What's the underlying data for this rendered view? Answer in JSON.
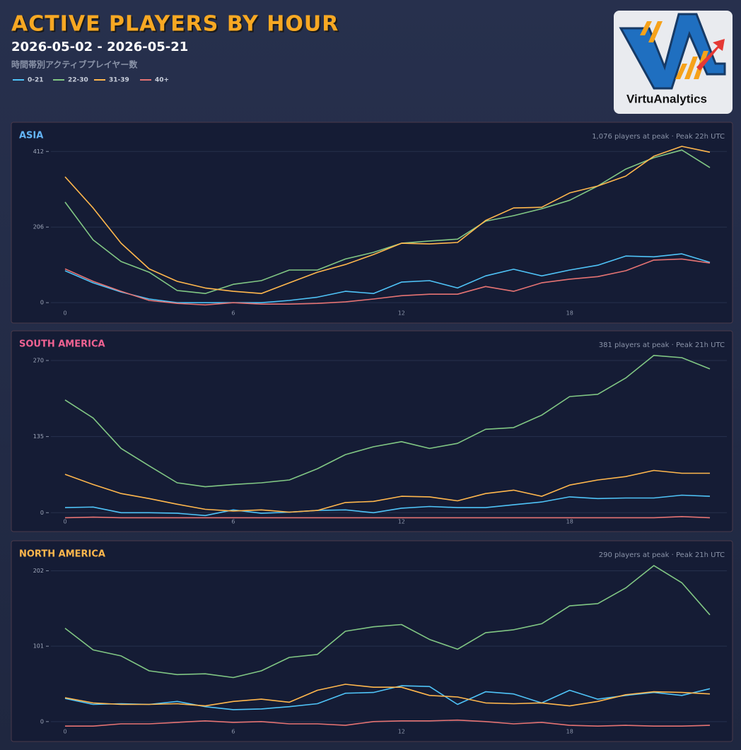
{
  "header": {
    "title": "ACTIVE PLAYERS BY HOUR",
    "date_range": "2026-05-02 - 2026-05-21",
    "subtitle": "時間帯別アクティブプレイヤー数"
  },
  "logo": {
    "text": "VirtuAnalytics"
  },
  "chart_data": [
    {
      "type": "line",
      "title": "ASIA",
      "title_color": "#64b5f6",
      "annotation": "1,076 players at peak  ·  Peak 22h UTC",
      "grid": true,
      "x": [
        0,
        1,
        2,
        3,
        4,
        5,
        6,
        7,
        8,
        9,
        10,
        11,
        12,
        13,
        14,
        15,
        16,
        17,
        18,
        19,
        20,
        21,
        22,
        23
      ],
      "xlim": [
        0,
        23
      ],
      "xticks": [
        0,
        6,
        12,
        18
      ],
      "ylim": [
        -44,
        426
      ],
      "yticks": [
        0,
        206,
        412
      ],
      "series": [
        {
          "name": "0-21",
          "color": "#4fc3f7",
          "values": [
            87,
            54,
            29,
            10,
            0,
            0,
            0,
            0,
            6,
            15,
            31,
            25,
            56,
            60,
            40,
            73,
            91,
            73,
            89,
            102,
            127,
            125,
            133,
            110
          ]
        },
        {
          "name": "22-30",
          "color": "#81c784",
          "values": [
            274,
            171,
            112,
            83,
            33,
            25,
            50,
            60,
            89,
            89,
            119,
            137,
            162,
            168,
            173,
            222,
            237,
            256,
            279,
            318,
            364,
            395,
            416,
            368
          ]
        },
        {
          "name": "31-39",
          "color": "#ffb74d",
          "values": [
            343,
            258,
            162,
            92,
            58,
            40,
            31,
            25,
            54,
            83,
            104,
            131,
            162,
            160,
            164,
            224,
            258,
            260,
            299,
            318,
            345,
            399,
            426,
            410
          ]
        },
        {
          "name": "40+",
          "color": "#e57373",
          "values": [
            92,
            58,
            31,
            6,
            -2,
            -6,
            0,
            -4,
            -4,
            -2,
            2,
            10,
            19,
            23,
            23,
            44,
            31,
            54,
            64,
            71,
            87,
            116,
            119,
            108
          ]
        }
      ]
    },
    {
      "type": "line",
      "title": "SOUTH AMERICA",
      "title_color": "#f06292",
      "annotation": "381 players at peak  ·  Peak 21h UTC",
      "grid": true,
      "x": [
        0,
        1,
        2,
        3,
        4,
        5,
        6,
        7,
        8,
        9,
        10,
        11,
        12,
        13,
        14,
        15,
        16,
        17,
        18,
        19,
        20,
        21,
        22,
        23
      ],
      "xlim": [
        0,
        23
      ],
      "xticks": [
        0,
        6,
        12,
        18
      ],
      "ylim": [
        -26,
        280
      ],
      "yticks": [
        0,
        135,
        270
      ],
      "series": [
        {
          "name": "0-21",
          "color": "#4fc3f7",
          "values": [
            9,
            10,
            0,
            0,
            -1,
            -5,
            5,
            -1,
            1,
            4,
            5,
            0,
            8,
            11,
            9,
            9,
            14,
            19,
            28,
            25,
            26,
            26,
            31,
            29
          ]
        },
        {
          "name": "22-30",
          "color": "#81c784",
          "values": [
            200,
            168,
            114,
            83,
            53,
            46,
            50,
            53,
            58,
            78,
            103,
            117,
            126,
            114,
            123,
            148,
            151,
            173,
            206,
            210,
            239,
            279,
            275,
            255
          ]
        },
        {
          "name": "31-39",
          "color": "#ffb74d",
          "values": [
            68,
            50,
            34,
            25,
            15,
            6,
            3,
            5,
            1,
            4,
            18,
            20,
            29,
            28,
            21,
            34,
            40,
            29,
            49,
            58,
            64,
            75,
            70,
            70
          ]
        },
        {
          "name": "40+",
          "color": "#e57373",
          "values": [
            -9,
            -8,
            -9,
            -9,
            -9,
            -9,
            -9,
            -9,
            -9,
            -9,
            -9,
            -9,
            -9,
            -9,
            -9,
            -9,
            -9,
            -9,
            -9,
            -9,
            -9,
            -9,
            -7,
            -9
          ]
        }
      ]
    },
    {
      "type": "line",
      "title": "NORTH AMERICA",
      "title_color": "#ffb74d",
      "annotation": "290 players at peak  ·  Peak 21h UTC",
      "grid": true,
      "x": [
        0,
        1,
        2,
        3,
        4,
        5,
        6,
        7,
        8,
        9,
        10,
        11,
        12,
        13,
        14,
        15,
        16,
        17,
        18,
        19,
        20,
        21,
        22,
        23
      ],
      "xlim": [
        0,
        23
      ],
      "xticks": [
        0,
        6,
        12,
        18
      ],
      "ylim": [
        -21,
        210
      ],
      "yticks": [
        0,
        101,
        202
      ],
      "series": [
        {
          "name": "0-21",
          "color": "#4fc3f7",
          "values": [
            31,
            23,
            24,
            23,
            27,
            20,
            16,
            17,
            20,
            24,
            38,
            39,
            48,
            47,
            23,
            40,
            37,
            25,
            42,
            30,
            35,
            39,
            35,
            44
          ]
        },
        {
          "name": "22-30",
          "color": "#81c784",
          "values": [
            125,
            96,
            88,
            68,
            63,
            64,
            59,
            68,
            86,
            90,
            121,
            127,
            130,
            110,
            97,
            119,
            123,
            131,
            155,
            158,
            179,
            209,
            186,
            143
          ]
        },
        {
          "name": "31-39",
          "color": "#ffb74d",
          "values": [
            32,
            25,
            23,
            23,
            24,
            21,
            27,
            30,
            26,
            42,
            50,
            46,
            46,
            35,
            33,
            25,
            24,
            25,
            21,
            27,
            36,
            40,
            39,
            37
          ]
        },
        {
          "name": "40+",
          "color": "#e57373",
          "values": [
            -6,
            -6,
            -3,
            -3,
            -1,
            1,
            -1,
            0,
            -3,
            -3,
            -5,
            0,
            1,
            1,
            2,
            0,
            -3,
            -1,
            -5,
            -6,
            -5,
            -6,
            -6,
            -5
          ]
        }
      ]
    }
  ]
}
